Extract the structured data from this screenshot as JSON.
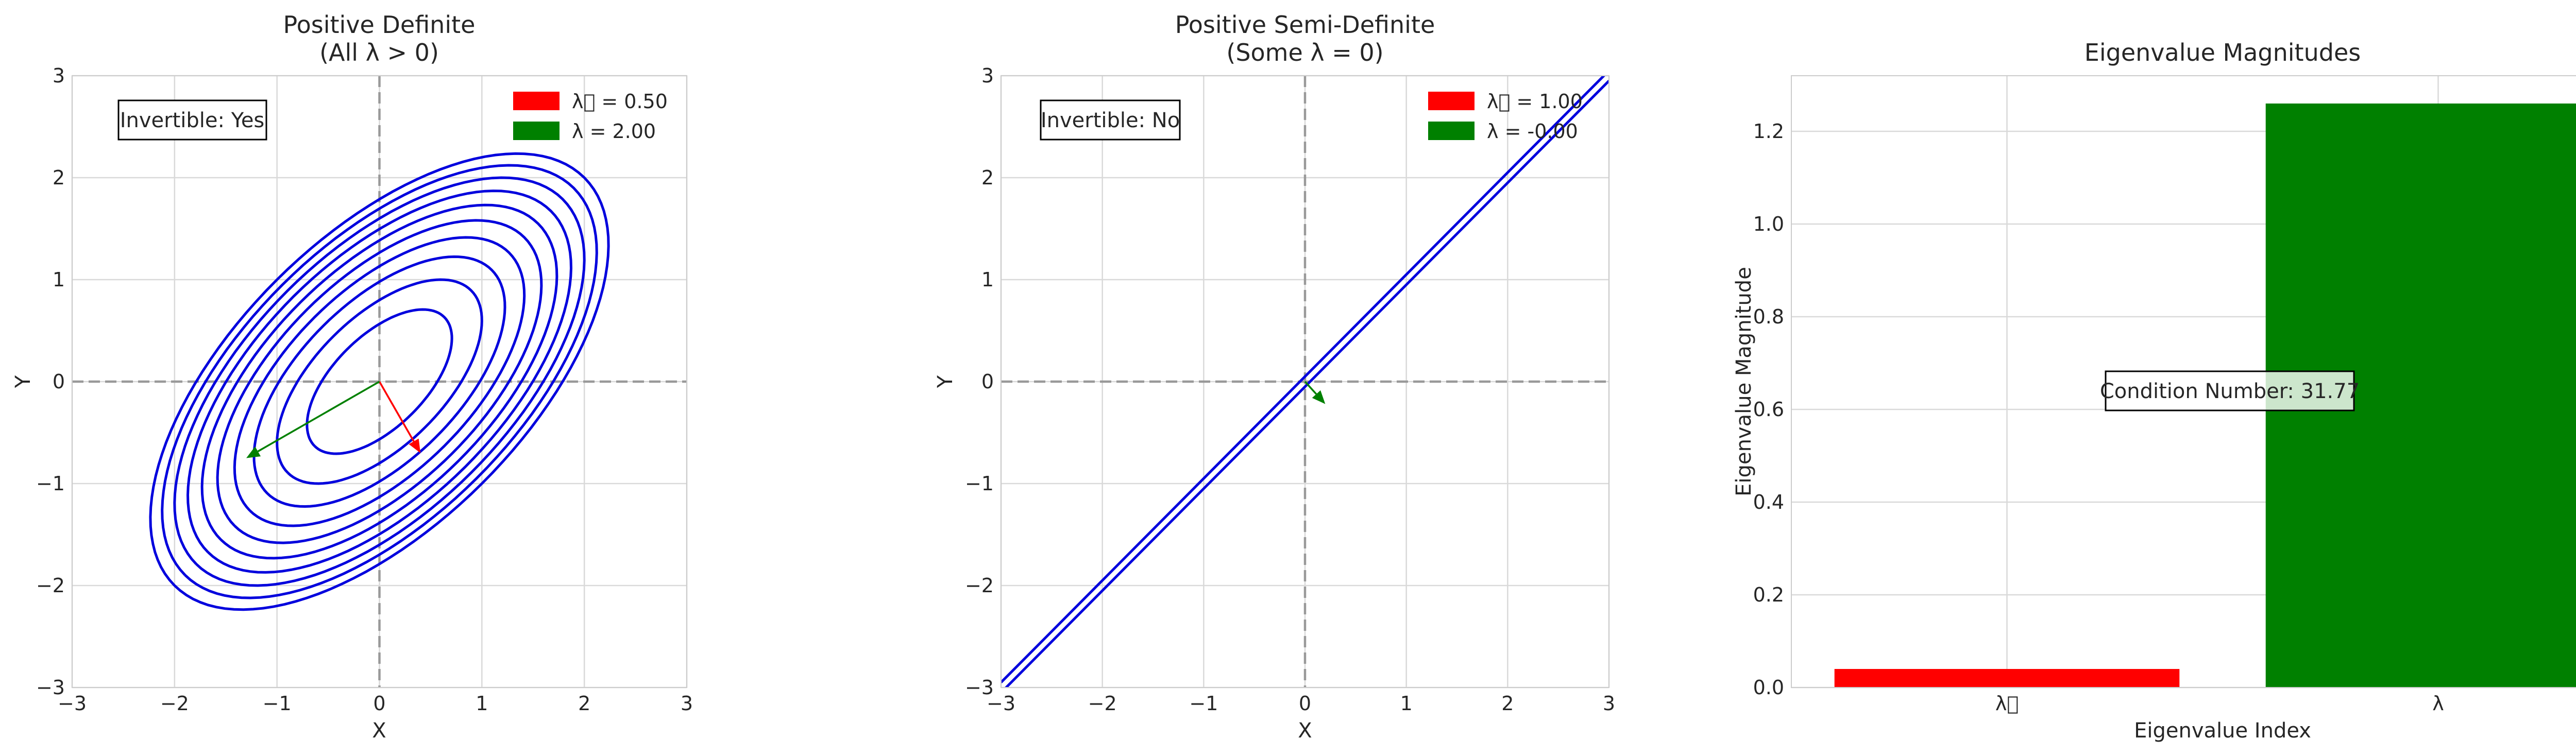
{
  "chart_data": [
    {
      "type": "line",
      "title_line1": "Positive Definite",
      "title_line2": "(All λ > 0)",
      "xlabel": "X",
      "ylabel": "Y",
      "xlim": [
        -3,
        3
      ],
      "ylim": [
        -3,
        3
      ],
      "xticks": [
        -3,
        -2,
        -1,
        0,
        1,
        2,
        3
      ],
      "yticks": [
        -3,
        -2,
        -1,
        0,
        1,
        2,
        3
      ],
      "xtick_labels": [
        "−3",
        "−2",
        "−1",
        "0",
        "1",
        "2",
        "3"
      ],
      "ytick_labels": [
        "−3",
        "−2",
        "−1",
        "0",
        "1",
        "2",
        "3"
      ],
      "grid": true,
      "legend_position": "top-right",
      "annotation": "Invertible: Yes",
      "contour_color": "#0000dd",
      "contour_levels": [
        0.1,
        0.2,
        0.3,
        0.4,
        0.5,
        0.6,
        0.7,
        0.8,
        0.9,
        1.0
      ],
      "matrix": [
        [
          1.25,
          -0.75
        ],
        [
          -0.75,
          1.25
        ]
      ],
      "series": [
        {
          "name": "λ\u0000 = 0.50",
          "color": "#ff0000",
          "vector": [
            0.4,
            -0.7
          ]
        },
        {
          "name": "λ\u0001 = 2.00",
          "color": "#008000",
          "vector": [
            -1.3,
            -0.75
          ]
        }
      ]
    },
    {
      "type": "line",
      "title_line1": "Positive Semi-Definite",
      "title_line2": "(Some λ = 0)",
      "xlabel": "X",
      "ylabel": "Y",
      "xlim": [
        -3,
        3
      ],
      "ylim": [
        -3,
        3
      ],
      "xticks": [
        -3,
        -2,
        -1,
        0,
        1,
        2,
        3
      ],
      "yticks": [
        -3,
        -2,
        -1,
        0,
        1,
        2,
        3
      ],
      "xtick_labels": [
        "−3",
        "−2",
        "−1",
        "0",
        "1",
        "2",
        "3"
      ],
      "ytick_labels": [
        "−3",
        "−2",
        "−1",
        "0",
        "1",
        "2",
        "3"
      ],
      "grid": true,
      "legend_position": "top-right",
      "annotation": "Invertible: No",
      "contour_color": "#0000dd",
      "lines": [
        {
          "x": [
            -3.0,
            3.0
          ],
          "y": [
            -2.95,
            3.05
          ]
        },
        {
          "x": [
            -3.0,
            3.0
          ],
          "y": [
            -3.05,
            2.95
          ]
        }
      ],
      "series": [
        {
          "name": "λ\u0000 = 1.00",
          "color": "#ff0000",
          "vector": [
            0.0,
            0.0
          ]
        },
        {
          "name": "λ\u0001 = -0.00",
          "color": "#008000",
          "vector": [
            0.2,
            -0.22
          ]
        }
      ]
    },
    {
      "type": "bar",
      "title": "Eigenvalue Magnitudes",
      "xlabel": "Eigenvalue Index",
      "ylabel": "Eigenvalue Magnitude",
      "categories": [
        "λ\u0000",
        "λ\u0001"
      ],
      "values": [
        0.04,
        1.26
      ],
      "colors": [
        "#ff0000",
        "#008000"
      ],
      "ylim": [
        0,
        1.32
      ],
      "yticks": [
        0.0,
        0.2,
        0.4,
        0.6,
        0.8,
        1.0,
        1.2
      ],
      "ytick_labels": [
        "0.0",
        "0.2",
        "0.4",
        "0.6",
        "0.8",
        "1.0",
        "1.2"
      ],
      "grid": true,
      "annotation": "Condition Number: 31.77",
      "annotation_value": 0.64
    }
  ]
}
